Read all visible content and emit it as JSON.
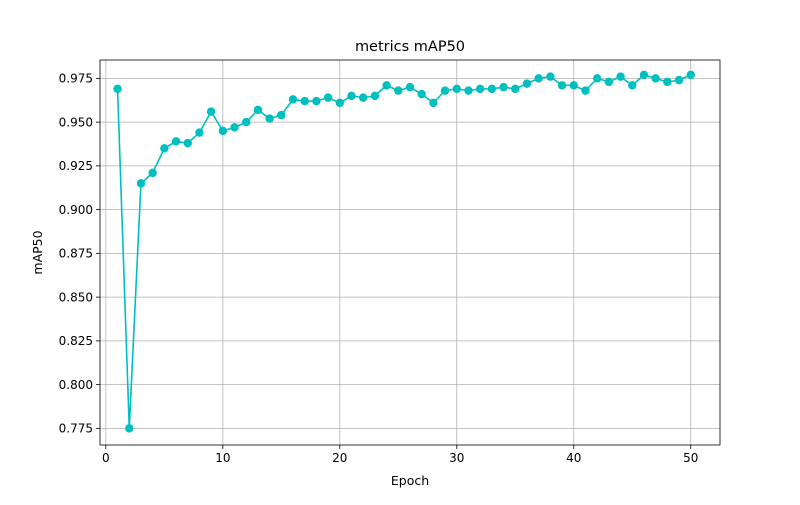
{
  "chart_data": {
    "type": "line",
    "title": "metrics mAP50",
    "xlabel": "Epoch",
    "ylabel": "mAP50",
    "xlim": [
      -0.5,
      52.5
    ],
    "ylim": [
      0.7655,
      0.9855
    ],
    "x_ticks": [
      0,
      10,
      20,
      30,
      40,
      50
    ],
    "y_ticks": [
      0.775,
      0.8,
      0.825,
      0.85,
      0.875,
      0.9,
      0.925,
      0.95,
      0.975
    ],
    "grid": true,
    "marker": "circle",
    "line_color": "#00bfbf",
    "series": [
      {
        "x": [
          1,
          2,
          3,
          4,
          5,
          6,
          7,
          8,
          9,
          10,
          11,
          12,
          13,
          14,
          15,
          16,
          17,
          18,
          19,
          20,
          21,
          22,
          23,
          24,
          25,
          26,
          27,
          28,
          29,
          30,
          31,
          32,
          33,
          34,
          35,
          36,
          37,
          38,
          39,
          40,
          41,
          42,
          43,
          44,
          45,
          46,
          47,
          48,
          49,
          50
        ],
        "values": [
          0.969,
          0.775,
          0.915,
          0.921,
          0.935,
          0.939,
          0.938,
          0.944,
          0.956,
          0.945,
          0.947,
          0.95,
          0.957,
          0.952,
          0.954,
          0.963,
          0.962,
          0.962,
          0.964,
          0.961,
          0.965,
          0.964,
          0.965,
          0.971,
          0.968,
          0.97,
          0.966,
          0.961,
          0.968,
          0.969,
          0.968,
          0.969,
          0.969,
          0.97,
          0.969,
          0.972,
          0.975,
          0.976,
          0.971,
          0.971,
          0.968,
          0.975,
          0.973,
          0.976,
          0.971,
          0.977,
          0.975,
          0.973,
          0.974,
          0.977
        ]
      }
    ]
  }
}
